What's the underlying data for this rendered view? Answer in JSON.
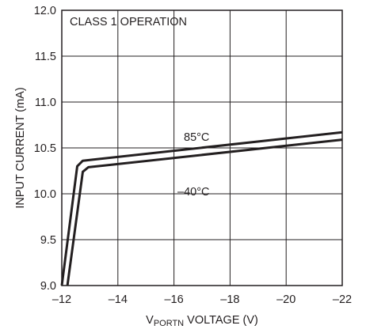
{
  "chart_data": {
    "type": "line",
    "title": "CLASS 1 OPERATION",
    "xlabel": {
      "prefix": "V",
      "subscript": "PORTN",
      "suffix": " VOLTAGE (V)"
    },
    "ylabel": "INPUT CURRENT (mA)",
    "xlim": [
      -12,
      -22
    ],
    "ylim": [
      9.0,
      12.0
    ],
    "x_ticks": [
      -12,
      -14,
      -16,
      -18,
      -20,
      -22
    ],
    "x_tick_labels": [
      "–12",
      "–14",
      "–16",
      "–18",
      "–20",
      "–22"
    ],
    "y_ticks": [
      9.0,
      9.5,
      10.0,
      10.5,
      11.0,
      11.5,
      12.0
    ],
    "y_tick_labels": [
      "9.0",
      "9.5",
      "10.0",
      "10.5",
      "11.0",
      "11.5",
      "12.0"
    ],
    "grid": true,
    "series": [
      {
        "name": "85°C",
        "points": [
          [
            -12.0,
            9.0
          ],
          [
            -12.55,
            10.3
          ],
          [
            -12.75,
            10.36
          ],
          [
            -22.0,
            10.67
          ]
        ]
      },
      {
        "name": "–40°C",
        "points": [
          [
            -12.2,
            9.0
          ],
          [
            -12.75,
            10.24
          ],
          [
            -12.95,
            10.29
          ],
          [
            -22.0,
            10.59
          ]
        ]
      }
    ]
  }
}
